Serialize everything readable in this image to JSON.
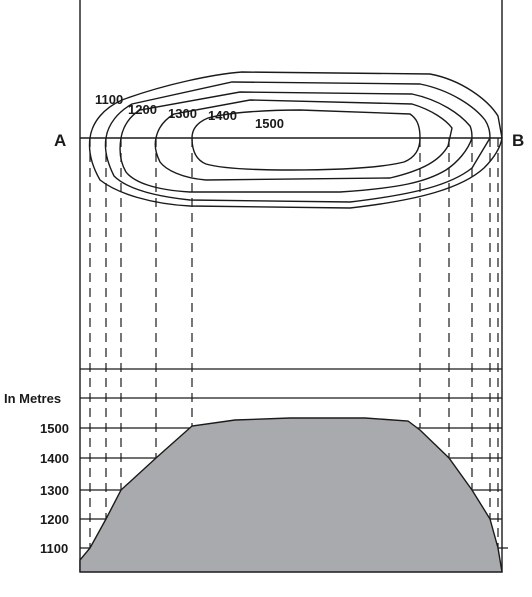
{
  "section": {
    "start_label": "A",
    "end_label": "B"
  },
  "contours": {
    "values": [
      1100,
      1200,
      1300,
      1400,
      1500
    ],
    "labels": [
      "1100",
      "1200",
      "1300",
      "1400",
      "1500"
    ]
  },
  "profile": {
    "unit_label": "In Metres",
    "height_labels": [
      "1500",
      "1400",
      "1300",
      "1200",
      "1100"
    ],
    "fill_color": "#a9aaad",
    "line_color": "#1a1a1a"
  }
}
